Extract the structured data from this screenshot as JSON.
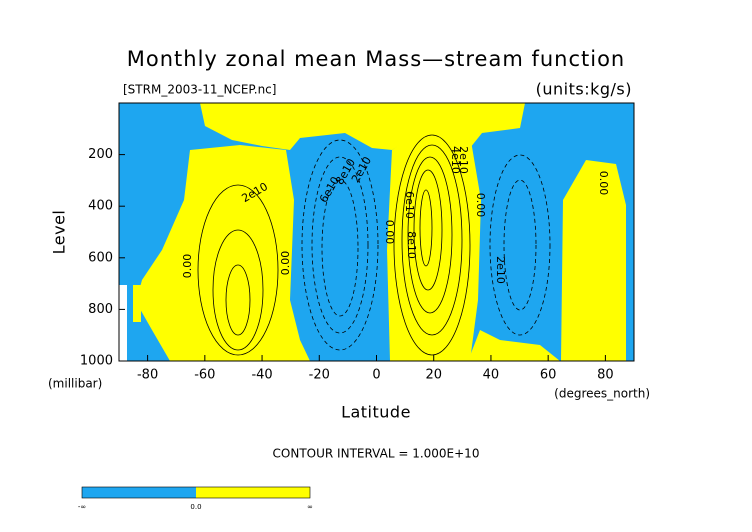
{
  "chart_data": {
    "type": "contour",
    "title": "Monthly zonal mean Mass—stream function",
    "subtitle_left": "[STRM_2003-11_NCEP.nc]",
    "subtitle_right": "(units:kg/s)",
    "x_label": "Latitude",
    "x_units": "(degrees_north)",
    "y_label": "Level",
    "y_units": "(millibar)",
    "xlim": [
      -90,
      90
    ],
    "xticks": [
      -80,
      -60,
      -40,
      -20,
      0,
      20,
      40,
      60,
      80
    ],
    "ylim": [
      1000,
      0
    ],
    "yticks": [
      200,
      400,
      600,
      800,
      1000
    ],
    "negative_color": "#1ea6f0",
    "positive_color": "#ffff00",
    "contour_labels": [
      "2e10",
      "0.00",
      "0.00",
      "6e10",
      "8e10",
      "2e10",
      "0.00",
      "6e10",
      "8e10",
      "2e10",
      "4e10",
      "0.00",
      "2e10",
      "0.00"
    ],
    "note": "CONTOUR INTERVAL = 1.000E+10",
    "colorbar_labels": [
      "-∞",
      "0.0",
      "∞"
    ]
  }
}
